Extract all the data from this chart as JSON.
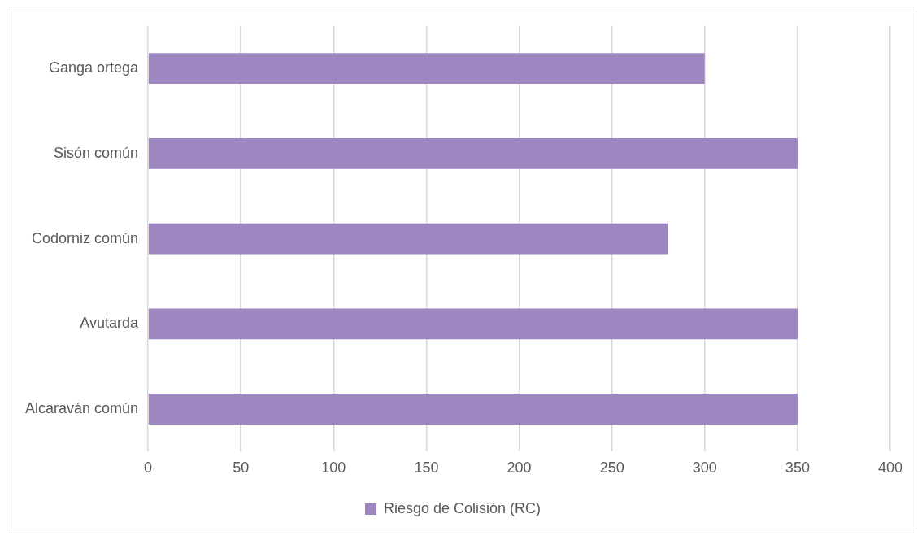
{
  "chart_data": {
    "type": "bar",
    "orientation": "horizontal",
    "categories": [
      "Ganga ortega",
      "Sisón común",
      "Codorniz común",
      "Avutarda",
      "Alcaraván común"
    ],
    "series": [
      {
        "name": "Riesgo de Colisión (RC)",
        "color": "#9e86c0",
        "values": [
          300,
          350,
          280,
          350,
          350
        ]
      }
    ],
    "xlim": [
      0,
      400
    ],
    "xticks": [
      0,
      50,
      100,
      150,
      200,
      250,
      300,
      350,
      400
    ],
    "grid": "x",
    "legend": "bottom"
  }
}
